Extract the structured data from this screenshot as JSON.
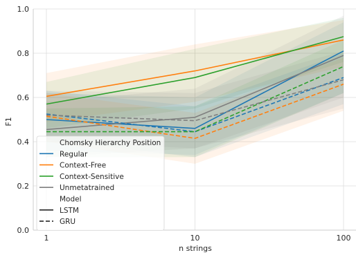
{
  "chart_data": {
    "type": "line",
    "xlabel": "n strings",
    "ylabel": "F1",
    "x": [
      1,
      10,
      100
    ],
    "x_tick_labels": [
      "1",
      "10",
      "100"
    ],
    "x_scale": "log",
    "ylim": [
      0.0,
      1.0
    ],
    "y_ticks": [
      0.0,
      0.2,
      0.4,
      0.6,
      0.8,
      1.0
    ],
    "y_tick_labels": [
      "0.0",
      "0.2",
      "0.4",
      "0.6",
      "0.8",
      "1.0"
    ],
    "grid": true,
    "legend": {
      "placement": "lower-left",
      "hue_title": "Chomsky Hierarchy Position",
      "hue_entries": [
        {
          "label": "Regular",
          "color": "#1f77b4"
        },
        {
          "label": "Context-Free",
          "color": "#ff7f0e"
        },
        {
          "label": "Context-Sensitive",
          "color": "#2ca02c"
        },
        {
          "label": "Unmetatrained",
          "color": "#7f7f7f"
        }
      ],
      "style_title": "Model",
      "style_entries": [
        {
          "label": "LSTM",
          "dash": "solid"
        },
        {
          "label": "GRU",
          "dash": "dashed"
        }
      ]
    },
    "series": [
      {
        "hue": "Regular",
        "style": "LSTM",
        "color": "#1f77b4",
        "dash": "solid",
        "values": [
          0.5,
          0.46,
          0.81
        ],
        "ci_low": [
          0.36,
          0.34,
          0.62
        ],
        "ci_high": [
          0.62,
          0.6,
          0.94
        ]
      },
      {
        "hue": "Context-Free",
        "style": "LSTM",
        "color": "#ff7f0e",
        "dash": "solid",
        "values": [
          0.605,
          0.72,
          0.86
        ],
        "ci_low": [
          0.49,
          0.58,
          0.74
        ],
        "ci_high": [
          0.71,
          0.84,
          0.95
        ]
      },
      {
        "hue": "Context-Sensitive",
        "style": "LSTM",
        "color": "#2ca02c",
        "dash": "solid",
        "values": [
          0.57,
          0.69,
          0.875
        ],
        "ci_low": [
          0.46,
          0.55,
          0.76
        ],
        "ci_high": [
          0.67,
          0.82,
          0.96
        ]
      },
      {
        "hue": "Unmetatrained",
        "style": "LSTM",
        "color": "#7f7f7f",
        "dash": "solid",
        "values": [
          0.455,
          0.51,
          0.79
        ],
        "ci_low": [
          0.33,
          0.37,
          0.6
        ],
        "ci_high": [
          0.58,
          0.64,
          0.97
        ]
      },
      {
        "hue": "Regular",
        "style": "GRU",
        "color": "#1f77b4",
        "dash": "dashed",
        "values": [
          0.525,
          0.445,
          0.69
        ],
        "ci_low": [
          0.41,
          0.33,
          0.57
        ],
        "ci_high": [
          0.63,
          0.56,
          0.8
        ]
      },
      {
        "hue": "Context-Free",
        "style": "GRU",
        "color": "#ff7f0e",
        "dash": "dashed",
        "values": [
          0.515,
          0.415,
          0.66
        ],
        "ci_low": [
          0.4,
          0.3,
          0.54
        ],
        "ci_high": [
          0.62,
          0.53,
          0.78
        ]
      },
      {
        "hue": "Context-Sensitive",
        "style": "GRU",
        "color": "#2ca02c",
        "dash": "dashed",
        "values": [
          0.445,
          0.445,
          0.74
        ],
        "ci_low": [
          0.33,
          0.33,
          0.62
        ],
        "ci_high": [
          0.55,
          0.56,
          0.86
        ]
      },
      {
        "hue": "Unmetatrained",
        "style": "GRU",
        "color": "#7f7f7f",
        "dash": "dashed",
        "values": [
          0.52,
          0.495,
          0.68
        ],
        "ci_low": [
          0.4,
          0.37,
          0.55
        ],
        "ci_high": [
          0.63,
          0.62,
          0.81
        ]
      }
    ]
  }
}
